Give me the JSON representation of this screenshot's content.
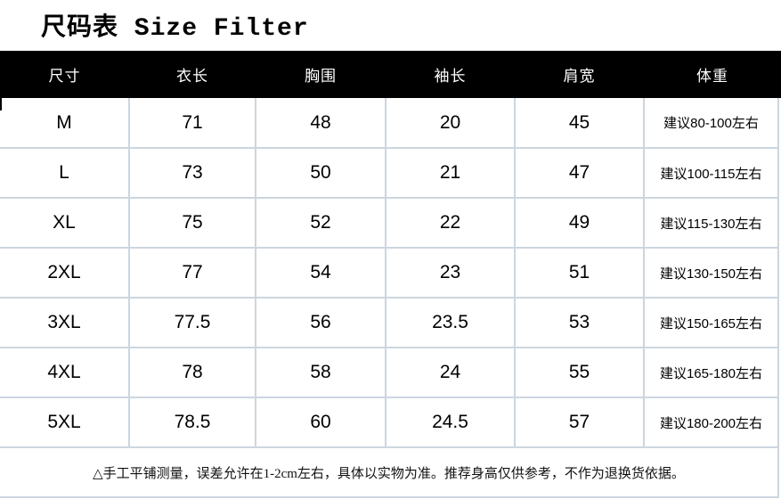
{
  "title": "尺码表 Size Filter",
  "table": {
    "columns": [
      {
        "key": "size",
        "label": "尺寸"
      },
      {
        "key": "length",
        "label": "衣长"
      },
      {
        "key": "chest",
        "label": "胸围"
      },
      {
        "key": "sleeve",
        "label": "袖长"
      },
      {
        "key": "shoulder",
        "label": "肩宽"
      },
      {
        "key": "weight",
        "label": "体重"
      }
    ],
    "rows": [
      {
        "size": "M",
        "length": "71",
        "chest": "48",
        "sleeve": "20",
        "shoulder": "45",
        "weight": "建议80-100左右"
      },
      {
        "size": "L",
        "length": "73",
        "chest": "50",
        "sleeve": "21",
        "shoulder": "47",
        "weight": "建议100-115左右"
      },
      {
        "size": "XL",
        "length": "75",
        "chest": "52",
        "sleeve": "22",
        "shoulder": "49",
        "weight": "建议115-130左右"
      },
      {
        "size": "2XL",
        "length": "77",
        "chest": "54",
        "sleeve": "23",
        "shoulder": "51",
        "weight": "建议130-150左右"
      },
      {
        "size": "3XL",
        "length": "77.5",
        "chest": "56",
        "sleeve": "23.5",
        "shoulder": "53",
        "weight": "建议150-165左右"
      },
      {
        "size": "4XL",
        "length": "78",
        "chest": "58",
        "sleeve": "24",
        "shoulder": "55",
        "weight": "建议165-180左右"
      },
      {
        "size": "5XL",
        "length": "78.5",
        "chest": "60",
        "sleeve": "24.5",
        "shoulder": "57",
        "weight": "建议180-200左右"
      }
    ]
  },
  "note": "△手工平铺测量，误差允许在1-2cm左右，具体以实物为准。推荐身高仅供参考，不作为退换货依据。",
  "colors": {
    "header_bg": "#000000",
    "header_text": "#ffffff",
    "border": "#ccd6df",
    "body_text": "#000000"
  }
}
